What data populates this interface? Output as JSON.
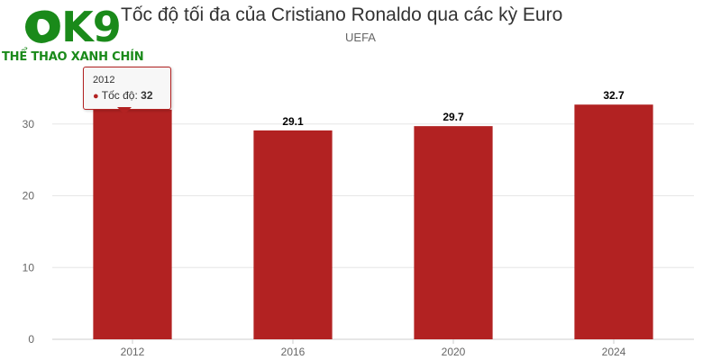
{
  "logo": {
    "main": "OK9",
    "sub": "THỂ THAO XANH CHÍN"
  },
  "chart_data": {
    "type": "bar",
    "title": "Tốc độ tối đa của Cristiano Ronaldo qua các kỳ Euro",
    "subtitle": "UEFA",
    "categories": [
      "2012",
      "2016",
      "2020",
      "2024"
    ],
    "series": [
      {
        "name": "Tốc độ",
        "values": [
          32,
          29.1,
          29.7,
          32.7
        ],
        "color": "#b22222"
      }
    ],
    "data_labels": [
      "",
      "29.1",
      "29.7",
      "32.7"
    ],
    "ylim": [
      0,
      40
    ],
    "yticks": [
      0,
      10,
      20,
      30
    ],
    "grid": true,
    "xlabel": "",
    "ylabel": ""
  },
  "tooltip": {
    "category": "2012",
    "label": "Tốc độ:",
    "value": "32"
  }
}
